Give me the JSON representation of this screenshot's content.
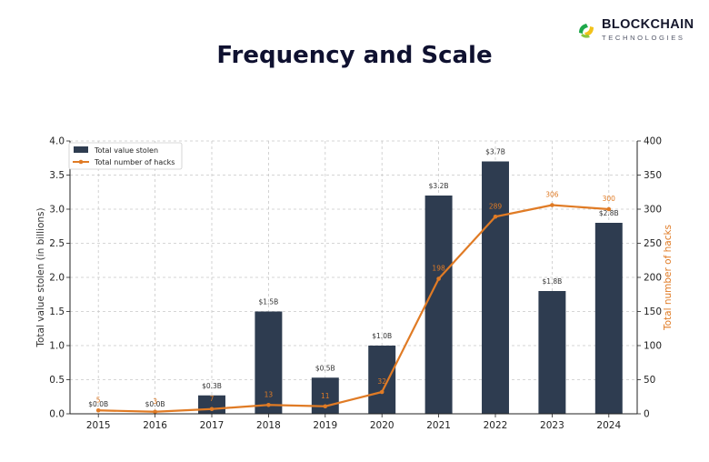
{
  "brand": {
    "name": "BLOCKCHAIN",
    "subtitle": "TECHNOLOGIES"
  },
  "header": {
    "title": "Frequency and Scale"
  },
  "colors": {
    "bar": "#2e3c50",
    "line": "#e07b25",
    "grid": "#c8c8c8",
    "title": "#0f1130"
  },
  "chart_data": {
    "type": "bar+line",
    "categories": [
      "2015",
      "2016",
      "2017",
      "2018",
      "2019",
      "2020",
      "2021",
      "2022",
      "2023",
      "2024"
    ],
    "series": [
      {
        "name": "Total value stolen",
        "kind": "bar",
        "axis": "left",
        "values": [
          0.0,
          0.0,
          0.27,
          1.5,
          0.53,
          1.0,
          3.2,
          3.7,
          1.8,
          2.8
        ],
        "labels": [
          "$0.0B",
          "$0.0B",
          "$0.3B",
          "$1.5B",
          "$0.5B",
          "$1.0B",
          "$3.2B",
          "$3.7B",
          "$1.8B",
          "$2.8B"
        ]
      },
      {
        "name": "Total number of hacks",
        "kind": "line",
        "axis": "right",
        "values": [
          5,
          3,
          7,
          13,
          11,
          32,
          198,
          289,
          306,
          300
        ],
        "labels": [
          "5",
          "3",
          "7",
          "13",
          "11",
          "32",
          "198",
          "289",
          "306",
          "300"
        ]
      }
    ],
    "ylabel": "Total value stolen (in billions)",
    "ylabel_right": "Total number of hacks",
    "ylim": [
      0,
      4
    ],
    "ylim_right": [
      0,
      400
    ],
    "yticks": [
      "0.0",
      "0.5",
      "1.0",
      "1.5",
      "2.0",
      "2.5",
      "3.0",
      "3.5",
      "4.0"
    ],
    "yticks_right": [
      "0",
      "50",
      "100",
      "150",
      "200",
      "250",
      "300",
      "350",
      "400"
    ],
    "grid": true,
    "legend": "top-left"
  }
}
